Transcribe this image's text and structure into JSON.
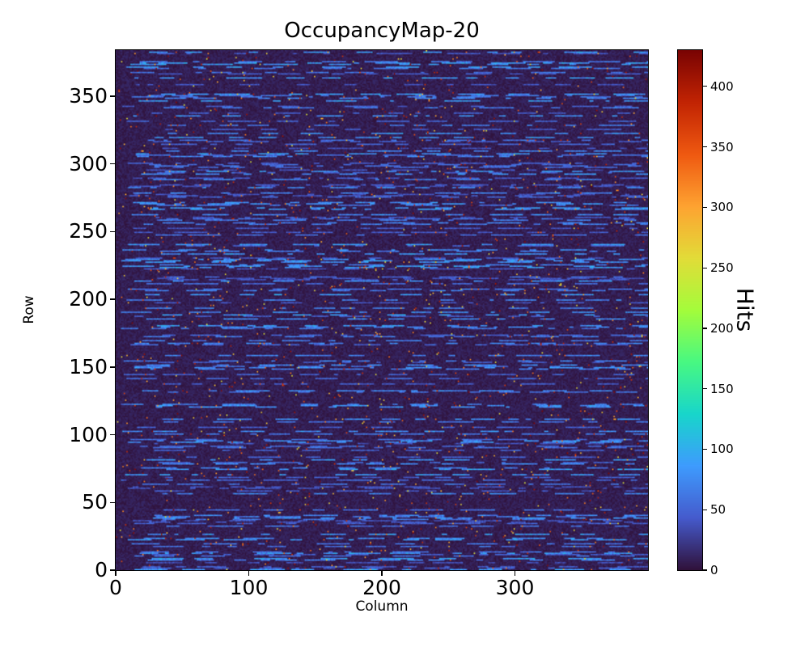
{
  "chart_data": {
    "type": "heatmap",
    "title": "OccupancyMap-20",
    "xlabel": "Column",
    "ylabel": "Row",
    "colorbar_label": "Hits",
    "n_cols": 400,
    "n_rows": 384,
    "x_range": [
      0,
      400
    ],
    "y_range": [
      0,
      384
    ],
    "x_ticks": [
      0,
      100,
      200,
      300
    ],
    "y_ticks": [
      0,
      50,
      100,
      150,
      200,
      250,
      300,
      350
    ],
    "colorbar_ticks": [
      0,
      50,
      100,
      150,
      200,
      250,
      300,
      350,
      400
    ],
    "vmin": 0,
    "vmax": 430,
    "colormap": "turbo",
    "colormap_stops": [
      [
        0.0,
        48,
        18,
        59
      ],
      [
        0.1,
        69,
        91,
        205
      ],
      [
        0.2,
        62,
        155,
        254
      ],
      [
        0.3,
        24,
        214,
        203
      ],
      [
        0.4,
        72,
        248,
        130
      ],
      [
        0.5,
        164,
        252,
        59
      ],
      [
        0.6,
        226,
        220,
        56
      ],
      [
        0.7,
        254,
        163,
        49
      ],
      [
        0.8,
        239,
        89,
        17
      ],
      [
        0.9,
        194,
        36,
        3
      ],
      [
        1.0,
        122,
        4,
        3
      ]
    ],
    "grid": false,
    "legend": "none",
    "pattern": {
      "description": "near-zero dark background with horizontal dashed streaks of low occupancy (blue) and sparse high-value speckle up to the colorbar maximum",
      "background_value_max": 14,
      "streak_row_probability": 0.45,
      "streak_value_min": 35,
      "streak_value_max": 85,
      "dash_length_min": 3,
      "dash_length_max": 28,
      "dash_gap_min": 4,
      "dash_gap_max": 40,
      "speckle_probability": 0.01,
      "speckle_value_min": 250,
      "speckle_value_max": 430
    }
  }
}
